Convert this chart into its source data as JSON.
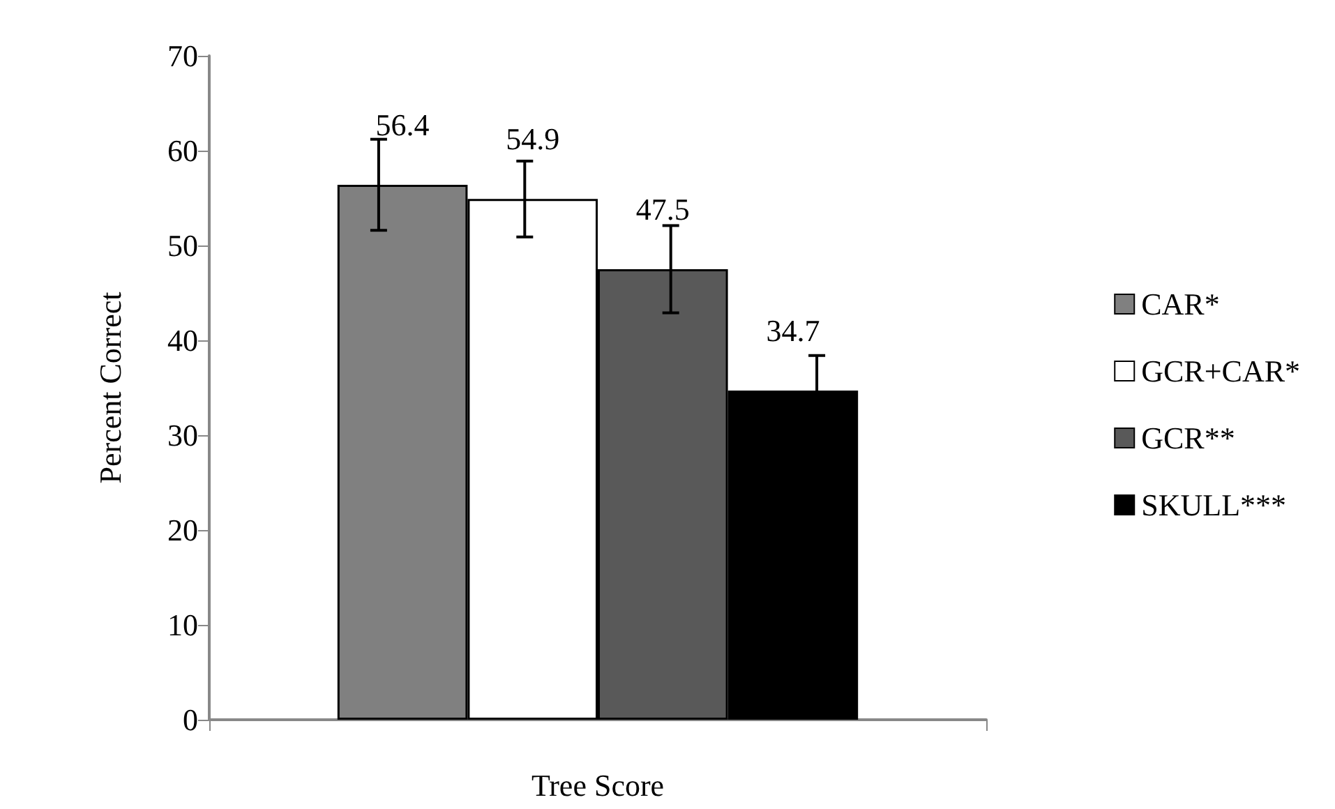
{
  "chart_data": {
    "type": "bar",
    "xlabel": "Tree Score",
    "ylabel": "Percent Correct",
    "categories": [
      null
    ],
    "series": [
      {
        "name": "CAR*",
        "color": "#808080",
        "values": [
          56.4
        ],
        "errors": [
          4.8
        ]
      },
      {
        "name": "GCR+CAR*",
        "color": "#ffffff",
        "values": [
          54.9
        ],
        "errors": [
          4.0
        ]
      },
      {
        "name": "GCR**",
        "color": "#595959",
        "values": [
          47.5
        ],
        "errors": [
          4.6
        ]
      },
      {
        "name": "SKULL***",
        "color": "#000000",
        "values": [
          34.7
        ],
        "errors": [
          3.7
        ]
      }
    ],
    "ylim": [
      0,
      70
    ],
    "yticks": [
      0,
      10,
      20,
      30,
      40,
      50,
      60,
      70
    ],
    "grid": false,
    "legend": "right",
    "data_labels": true
  }
}
